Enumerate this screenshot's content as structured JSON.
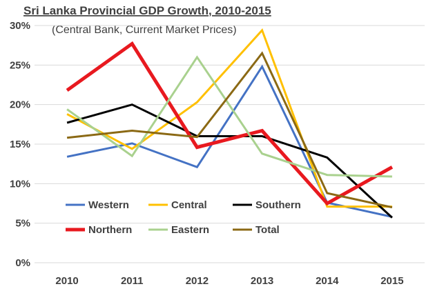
{
  "chart_data": {
    "type": "line",
    "title": "Sri Lanka Provincial  GDP Growth, 2010-2015",
    "subtitle": "(Central Bank, Current Market Prices)",
    "xlabel": "",
    "ylabel": "",
    "categories": [
      "2010",
      "2011",
      "2012",
      "2013",
      "2014",
      "2015"
    ],
    "ylim": [
      0,
      30
    ],
    "yticks": [
      0,
      5,
      10,
      15,
      20,
      25,
      30
    ],
    "ytick_labels": [
      "0%",
      "5%",
      "10%",
      "15%",
      "20%",
      "25%",
      "30%"
    ],
    "grid": true,
    "legend_position": "bottom-left",
    "series": [
      {
        "name": "Western",
        "color": "#4472C4",
        "width": "normal",
        "values": [
          13.4,
          15.1,
          12.1,
          24.8,
          7.6,
          5.8
        ]
      },
      {
        "name": "Central",
        "color": "#FFC000",
        "width": "normal",
        "values": [
          18.8,
          14.4,
          20.3,
          29.4,
          7.1,
          7.1
        ]
      },
      {
        "name": "Southern",
        "color": "#000000",
        "width": "normal",
        "values": [
          17.7,
          20.0,
          16.0,
          16.0,
          13.3,
          5.7
        ]
      },
      {
        "name": "Northern",
        "color": "#E8191F",
        "width": "bold",
        "values": [
          21.8,
          27.7,
          14.6,
          16.7,
          7.5,
          12.1
        ]
      },
      {
        "name": "Eastern",
        "color": "#A9D18E",
        "width": "normal",
        "values": [
          19.4,
          13.5,
          26.0,
          13.8,
          11.1,
          10.9
        ]
      },
      {
        "name": "Total",
        "color": "#8B6914",
        "width": "normal",
        "values": [
          15.8,
          16.7,
          15.9,
          26.5,
          8.8,
          7.0
        ]
      }
    ]
  }
}
